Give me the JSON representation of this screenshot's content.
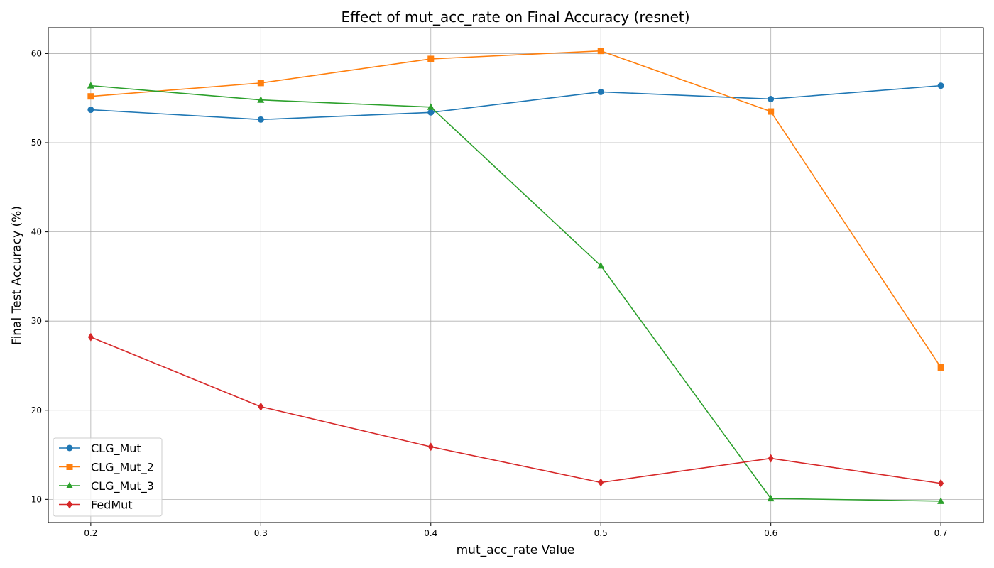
{
  "chart_data": {
    "type": "line",
    "title": "Effect of mut_acc_rate on Final Accuracy (resnet)",
    "xlabel": "mut_acc_rate Value",
    "ylabel": "Final Test Accuracy (%)",
    "x": [
      0.2,
      0.3,
      0.4,
      0.5,
      0.6,
      0.7
    ],
    "x_ticks": [
      "0.2",
      "0.3",
      "0.4",
      "0.5",
      "0.6",
      "0.7"
    ],
    "y_ticks": [
      "10",
      "20",
      "30",
      "40",
      "50",
      "60"
    ],
    "xlim": [
      0.175,
      0.725
    ],
    "ylim": [
      7.4,
      62.9
    ],
    "grid": true,
    "legend_position": "lower-left",
    "series": [
      {
        "name": "CLG_Mut",
        "marker": "circle",
        "color": "#1f77b4",
        "values": [
          53.7,
          52.6,
          53.4,
          55.7,
          54.9,
          56.4
        ]
      },
      {
        "name": "CLG_Mut_2",
        "marker": "square",
        "color": "#ff7f0e",
        "values": [
          55.2,
          56.7,
          59.4,
          60.3,
          53.5,
          24.8
        ]
      },
      {
        "name": "CLG_Mut_3",
        "marker": "triangle",
        "color": "#2ca02c",
        "values": [
          56.4,
          54.8,
          54.0,
          36.2,
          10.1,
          9.8
        ]
      },
      {
        "name": "FedMut",
        "marker": "diamond",
        "color": "#d62728",
        "values": [
          28.2,
          20.4,
          15.9,
          11.9,
          14.6,
          11.8
        ]
      }
    ]
  }
}
